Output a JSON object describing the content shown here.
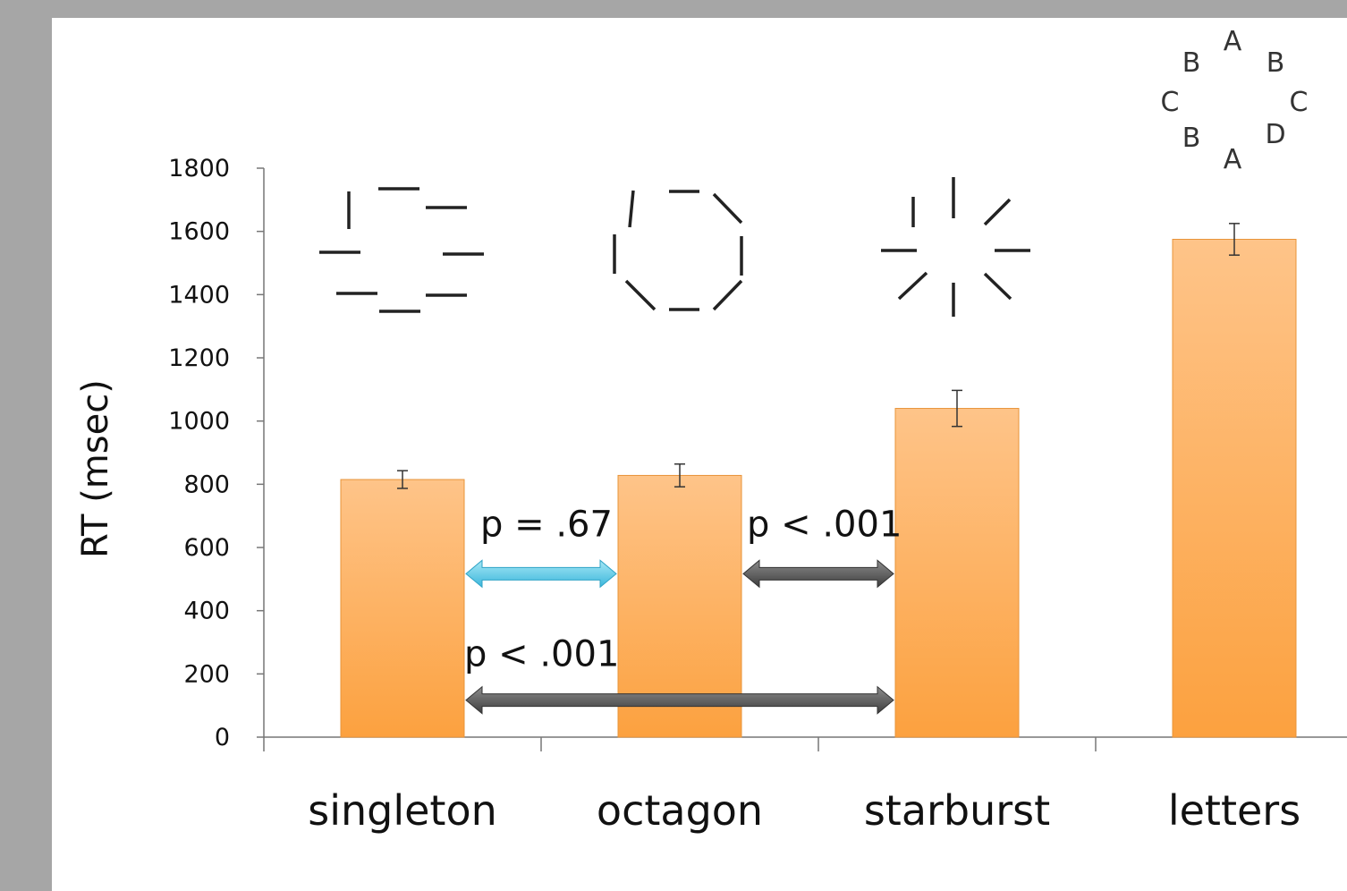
{
  "chart_data": {
    "type": "bar",
    "categories": [
      "singleton",
      "octagon",
      "starburst",
      "letters"
    ],
    "values": [
      815,
      828,
      1040,
      1575
    ],
    "errors": [
      28,
      36,
      57,
      50
    ],
    "ylabel": "RT (msec)",
    "xlabel": "",
    "title": "",
    "ylim": [
      0,
      1800
    ],
    "yticks": [
      0,
      200,
      400,
      600,
      800,
      1000,
      1200,
      1400,
      1600,
      1800
    ],
    "grid": false,
    "bar_color": "#fcb766",
    "comparisons": [
      {
        "from": "singleton",
        "to": "octagon",
        "label": "p = .67",
        "y": 500,
        "color": "#5bc8e6"
      },
      {
        "from": "octagon",
        "to": "starburst",
        "label": "p < .001",
        "y": 500,
        "color": "#5a5a5a"
      },
      {
        "from": "singleton",
        "to": "starburst",
        "label": "p < .001",
        "y": 100,
        "color": "#5a5a5a"
      }
    ],
    "stimulus_letters": [
      "A",
      "B",
      "B",
      "C",
      "C",
      "B",
      "D",
      "A"
    ]
  }
}
